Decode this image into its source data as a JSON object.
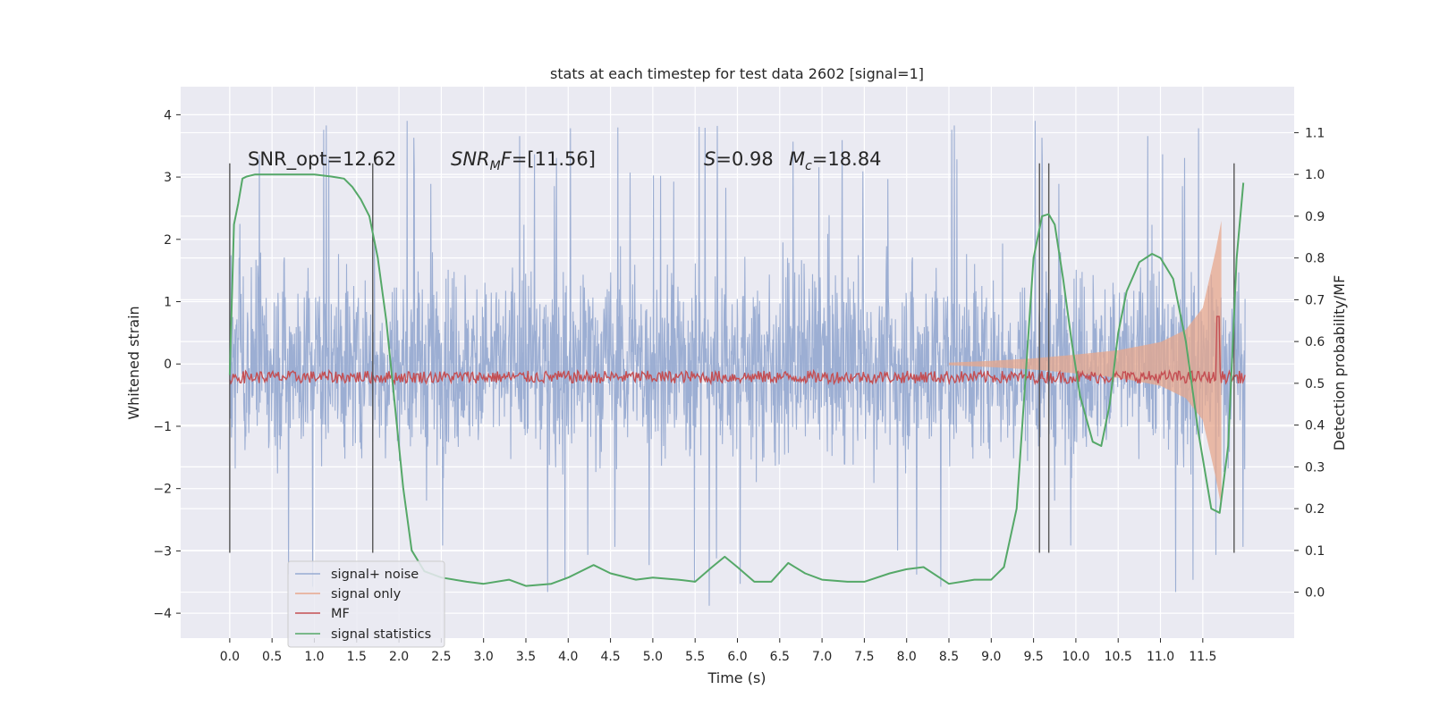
{
  "chart_data": {
    "type": "line",
    "title": "stats at each timestep for test data 2602 [signal=1]",
    "xlabel": "Time (s)",
    "ylabel": "Whitened strain",
    "ylabel_right": "Detection probability/MF",
    "xlim": [
      -0.58,
      12.58
    ],
    "ylim": [
      -4.4,
      4.45
    ],
    "ylim_right": [
      -0.11,
      1.21
    ],
    "x_ticks": [
      "0.0",
      "0.5",
      "1.0",
      "1.5",
      "2.0",
      "2.5",
      "3.0",
      "3.5",
      "4.0",
      "4.5",
      "5.0",
      "5.5",
      "6.0",
      "6.5",
      "7.0",
      "7.5",
      "8.0",
      "8.5",
      "9.0",
      "9.5",
      "10.0",
      "10.5",
      "11.0",
      "11.5"
    ],
    "y_ticks": [
      "−4",
      "−3",
      "−2",
      "−1",
      "0",
      "1",
      "2",
      "3",
      "4"
    ],
    "y_ticks_right": [
      "0.0",
      "0.1",
      "0.2",
      "0.3",
      "0.4",
      "0.5",
      "0.6",
      "0.7",
      "0.8",
      "0.9",
      "1.0",
      "1.1"
    ],
    "grid": true,
    "legend_position": "lower-left",
    "annotations": {
      "snr_opt": "SNR_opt=12.62",
      "snr_mf_prefix": "SNR",
      "snr_mf_sub": "M",
      "snr_mf_suffix": "F",
      "snr_mf_value": "=[11.56]",
      "s_symbol": "S",
      "s_value": "=0.98",
      "mc_symbol": "M",
      "mc_sub": "c",
      "mc_value": "=18.84"
    },
    "vertical_lines_x": [
      0.0,
      1.69,
      9.57,
      9.68,
      11.87
    ],
    "series": [
      {
        "name": "signal+ noise",
        "color": "#98abd1",
        "axis": "left",
        "t_range": [
          0.0,
          12.0
        ],
        "amplitude": 1.0,
        "description_values": "noise band approximately -2.5 to 2.6 with spikes up to 4.1 and down to -3.9"
      },
      {
        "name": "signal only",
        "color": "#e7a78c",
        "axis": "left",
        "envelope_t": [
          8.5,
          9.0,
          9.5,
          10.0,
          10.5,
          11.0,
          11.3,
          11.5,
          11.65,
          11.72
        ],
        "envelope_amp": [
          0.02,
          0.05,
          0.09,
          0.15,
          0.22,
          0.35,
          0.55,
          0.9,
          1.8,
          2.3
        ]
      },
      {
        "name": "MF",
        "color": "#c44e52",
        "axis": "right",
        "baseline": 0.5,
        "band_top": 0.53,
        "spike_t": 11.68,
        "spike_value": 0.66
      },
      {
        "name": "signal statistics",
        "color": "#55a868",
        "axis": "right",
        "t": [
          0.0,
          0.05,
          0.1,
          0.15,
          0.2,
          0.3,
          0.5,
          0.8,
          1.0,
          1.2,
          1.35,
          1.45,
          1.55,
          1.65,
          1.75,
          1.85,
          1.95,
          2.05,
          2.15,
          2.3,
          2.5,
          2.8,
          3.0,
          3.3,
          3.5,
          3.8,
          4.0,
          4.3,
          4.5,
          4.8,
          5.0,
          5.3,
          5.5,
          5.7,
          5.85,
          6.0,
          6.2,
          6.4,
          6.6,
          6.8,
          7.0,
          7.3,
          7.5,
          7.8,
          8.0,
          8.2,
          8.5,
          8.8,
          9.0,
          9.15,
          9.3,
          9.4,
          9.5,
          9.6,
          9.68,
          9.75,
          9.85,
          9.95,
          10.05,
          10.2,
          10.3,
          10.4,
          10.5,
          10.6,
          10.75,
          10.9,
          11.0,
          11.15,
          11.3,
          11.45,
          11.6,
          11.7,
          11.8,
          11.9,
          11.98
        ],
        "values": [
          0.52,
          0.88,
          0.93,
          0.99,
          0.995,
          1.0,
          1.0,
          1.0,
          1.0,
          0.995,
          0.99,
          0.97,
          0.94,
          0.9,
          0.8,
          0.65,
          0.45,
          0.25,
          0.1,
          0.05,
          0.035,
          0.025,
          0.02,
          0.03,
          0.015,
          0.02,
          0.035,
          0.065,
          0.045,
          0.03,
          0.035,
          0.03,
          0.025,
          0.06,
          0.085,
          0.06,
          0.025,
          0.025,
          0.07,
          0.045,
          0.03,
          0.025,
          0.025,
          0.045,
          0.055,
          0.06,
          0.02,
          0.03,
          0.03,
          0.06,
          0.2,
          0.5,
          0.8,
          0.9,
          0.905,
          0.88,
          0.75,
          0.6,
          0.47,
          0.36,
          0.35,
          0.45,
          0.62,
          0.72,
          0.79,
          0.81,
          0.8,
          0.75,
          0.6,
          0.38,
          0.2,
          0.19,
          0.35,
          0.8,
          0.98
        ]
      }
    ]
  }
}
